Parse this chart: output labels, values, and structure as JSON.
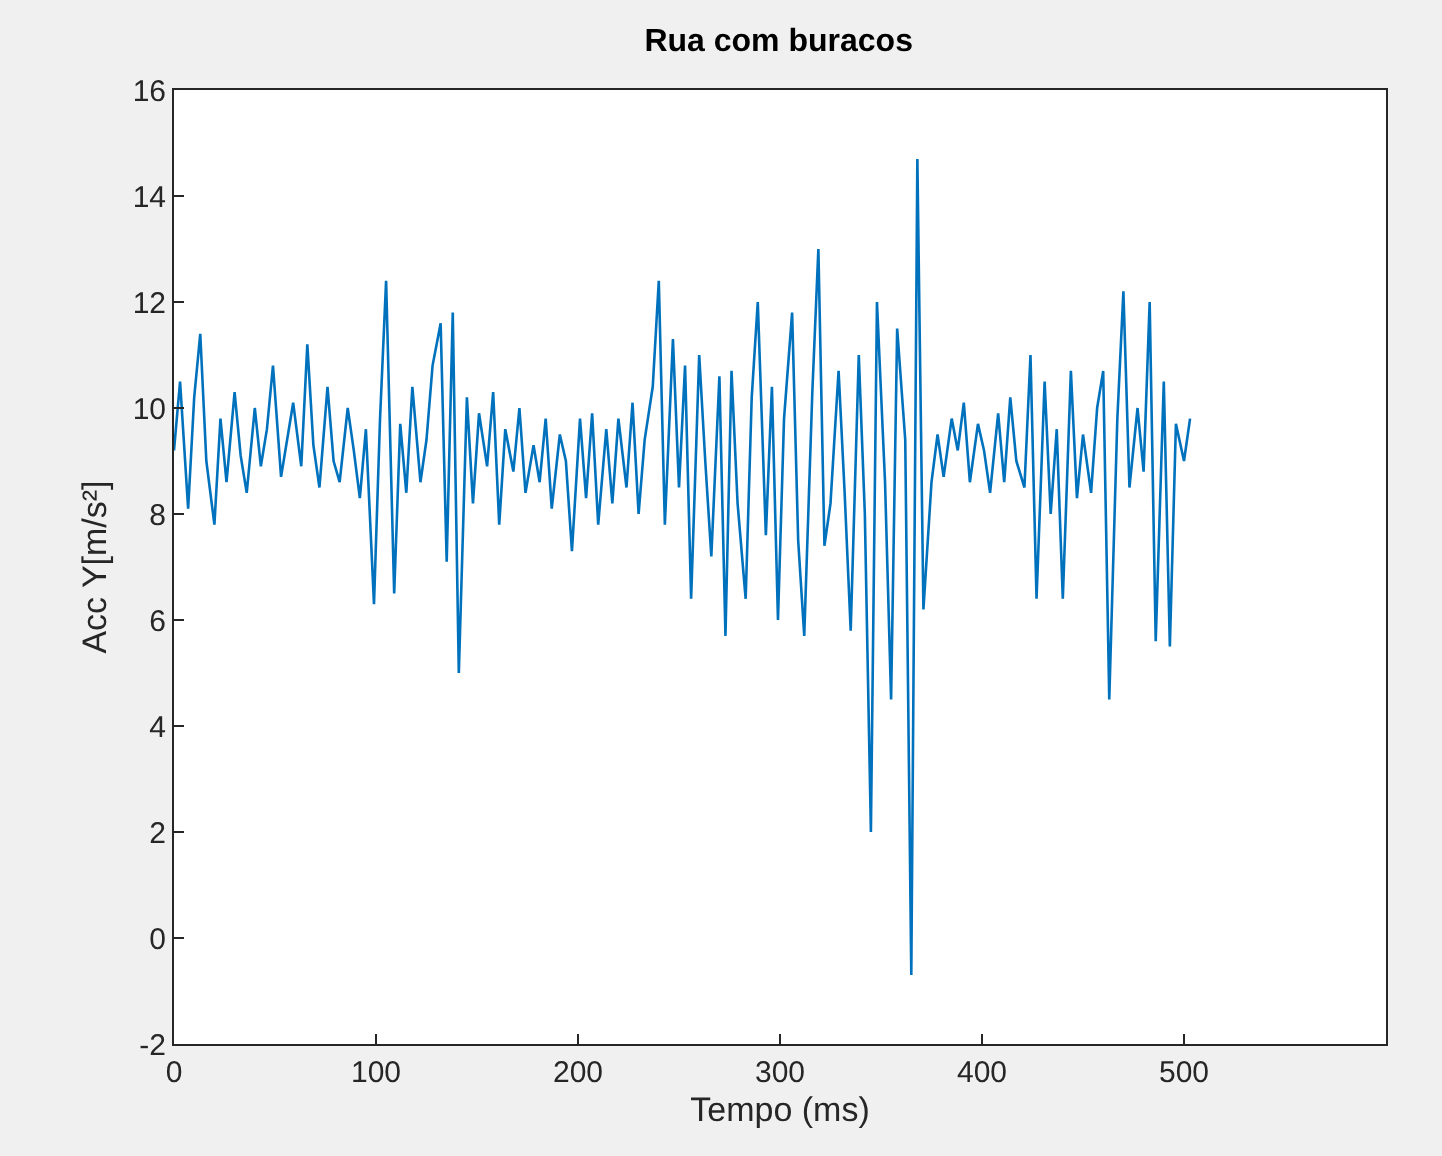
{
  "chart_data": {
    "type": "line",
    "title": "Rua com buracos",
    "xlabel": "Tempo (ms)",
    "ylabel": "Acc Y[m/s²]",
    "xlim": [
      0,
      600
    ],
    "ylim": [
      -2,
      16
    ],
    "xticks": [
      0,
      100,
      200,
      300,
      400,
      500
    ],
    "yticks": [
      -2,
      0,
      2,
      4,
      6,
      8,
      10,
      12,
      14,
      16
    ],
    "legend": false,
    "marker": "none",
    "line_style": "solid",
    "series": [
      {
        "color": "#0072bd",
        "x": [
          0,
          3,
          7,
          10,
          13,
          16,
          20,
          23,
          26,
          30,
          33,
          36,
          40,
          43,
          46,
          49,
          53,
          56,
          59,
          63,
          66,
          69,
          72,
          76,
          79,
          82,
          86,
          89,
          92,
          95,
          99,
          102,
          105,
          109,
          112,
          115,
          118,
          122,
          125,
          128,
          132,
          135,
          138,
          141,
          145,
          148,
          151,
          155,
          158,
          161,
          164,
          168,
          171,
          174,
          178,
          181,
          184,
          187,
          191,
          194,
          197,
          201,
          204,
          207,
          210,
          214,
          217,
          220,
          224,
          227,
          230,
          233,
          237,
          240,
          243,
          247,
          250,
          253,
          256,
          260,
          263,
          266,
          270,
          273,
          276,
          279,
          283,
          286,
          289,
          293,
          296,
          299,
          302,
          306,
          309,
          312,
          316,
          319,
          322,
          325,
          329,
          332,
          335,
          339,
          342,
          345,
          348,
          352,
          355,
          358,
          362,
          365,
          368,
          371,
          375,
          378,
          381,
          385,
          388,
          391,
          394,
          398,
          401,
          404,
          408,
          411,
          414,
          417,
          421,
          424,
          427,
          431,
          434,
          437,
          440,
          444,
          447,
          450,
          454,
          457,
          460,
          463,
          467,
          470,
          473,
          477,
          480,
          483,
          486,
          490,
          493,
          496,
          500,
          503
        ],
        "values": [
          9.2,
          10.5,
          8.1,
          10.2,
          11.4,
          9.0,
          7.8,
          9.8,
          8.6,
          10.3,
          9.1,
          8.4,
          10.0,
          8.9,
          9.6,
          10.8,
          8.7,
          9.4,
          10.1,
          8.9,
          11.2,
          9.3,
          8.5,
          10.4,
          9.0,
          8.6,
          10.0,
          9.2,
          8.3,
          9.6,
          6.3,
          9.8,
          12.4,
          6.5,
          9.7,
          8.4,
          10.4,
          8.6,
          9.4,
          10.8,
          11.6,
          7.1,
          11.8,
          5.0,
          10.2,
          8.2,
          9.9,
          8.9,
          10.3,
          7.8,
          9.6,
          8.8,
          10.0,
          8.4,
          9.3,
          8.6,
          9.8,
          8.1,
          9.5,
          9.0,
          7.3,
          9.8,
          8.3,
          9.9,
          7.8,
          9.6,
          8.2,
          9.8,
          8.5,
          10.1,
          8.0,
          9.4,
          10.4,
          12.4,
          7.8,
          11.3,
          8.5,
          10.8,
          6.4,
          11.0,
          9.0,
          7.2,
          10.6,
          5.7,
          10.7,
          8.2,
          6.4,
          10.2,
          12.0,
          7.6,
          10.4,
          6.0,
          9.8,
          11.8,
          7.5,
          5.7,
          10.3,
          13.0,
          7.4,
          8.2,
          10.7,
          8.4,
          5.8,
          11.0,
          8.0,
          2.0,
          12.0,
          8.6,
          4.5,
          11.5,
          9.4,
          -0.7,
          14.7,
          6.2,
          8.6,
          9.5,
          8.7,
          9.8,
          9.2,
          10.1,
          8.6,
          9.7,
          9.2,
          8.4,
          9.9,
          8.6,
          10.2,
          9.0,
          8.5,
          11.0,
          6.4,
          10.5,
          8.0,
          9.6,
          6.4,
          10.7,
          8.3,
          9.5,
          8.4,
          10.0,
          10.7,
          4.5,
          9.8,
          12.2,
          8.5,
          10.0,
          8.8,
          12.0,
          5.6,
          10.5,
          5.5,
          9.7,
          9.0,
          9.8
        ]
      }
    ]
  }
}
